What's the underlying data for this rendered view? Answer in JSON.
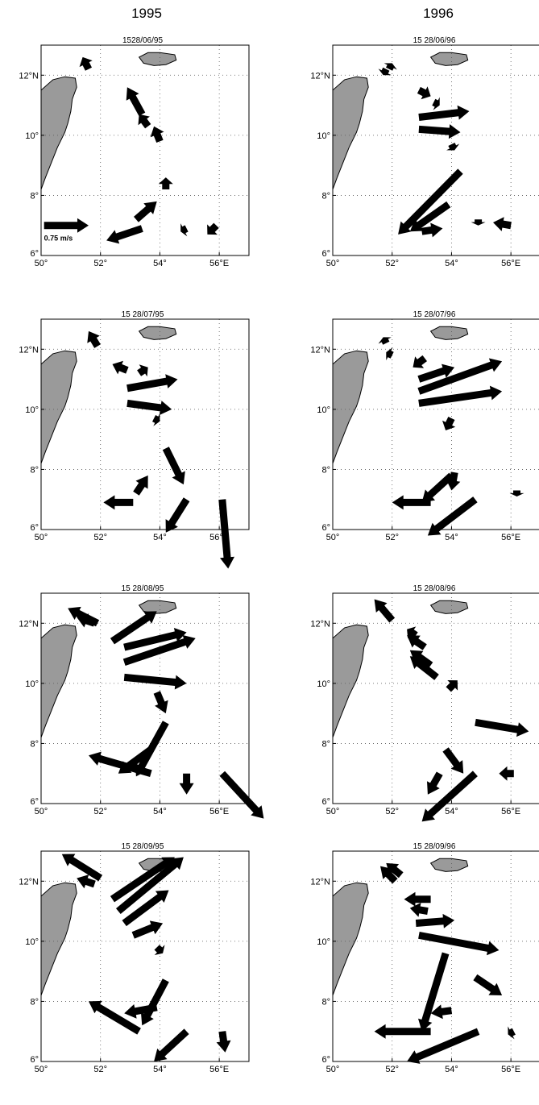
{
  "columns": [
    "1995",
    "1996"
  ],
  "axes": {
    "x_ticks": [
      {
        "v": 50,
        "label": "50°"
      },
      {
        "v": 52,
        "label": "52°"
      },
      {
        "v": 54,
        "label": "54°"
      },
      {
        "v": 56,
        "label": "56°E"
      }
    ],
    "y_ticks": [
      {
        "v": 6,
        "label": "6°"
      },
      {
        "v": 8,
        "label": "8°"
      },
      {
        "v": 10,
        "label": "10°"
      },
      {
        "v": 12,
        "label": "12°N"
      }
    ],
    "xlim": [
      50,
      57
    ],
    "ylim": [
      6,
      13
    ]
  },
  "colors": {
    "land": "#9a9a9a",
    "arrow": "#000000",
    "grid": "#555555"
  },
  "scale_label": "0.75 m/s",
  "chart_data": [
    {
      "type": "quiver",
      "title": "1528/06/95",
      "arrows": [
        [
          51.6,
          12.2,
          51.4,
          12.6
        ],
        [
          53.4,
          10.7,
          52.9,
          11.6
        ],
        [
          53.6,
          10.3,
          53.3,
          10.7
        ],
        [
          54.0,
          9.8,
          53.8,
          10.3
        ],
        [
          54.2,
          8.2,
          54.2,
          8.6
        ],
        [
          53.2,
          7.2,
          53.9,
          7.8
        ],
        [
          53.4,
          6.9,
          52.2,
          6.5
        ],
        [
          54.9,
          6.9,
          54.7,
          6.8
        ],
        [
          55.9,
          7.0,
          55.6,
          6.7
        ],
        [
          50.1,
          7.0,
          51.6,
          7.0
        ]
      ]
    },
    {
      "type": "quiver",
      "title": "15  28/06/96",
      "arrows": [
        [
          51.8,
          12.2,
          51.7,
          12.0
        ],
        [
          51.9,
          12.2,
          52.0,
          12.4
        ],
        [
          52.9,
          11.5,
          53.3,
          11.3
        ],
        [
          53.4,
          11.1,
          53.6,
          11.0
        ],
        [
          52.9,
          10.6,
          54.6,
          10.8
        ],
        [
          52.9,
          10.2,
          54.3,
          10.1
        ],
        [
          54.0,
          9.7,
          54.1,
          9.5
        ],
        [
          54.3,
          8.8,
          52.2,
          6.7
        ],
        [
          53.9,
          7.7,
          52.6,
          6.8
        ],
        [
          53.0,
          6.8,
          53.7,
          6.9
        ],
        [
          54.9,
          7.2,
          54.9,
          7.0
        ],
        [
          56.0,
          7.0,
          55.4,
          7.1
        ]
      ]
    },
    {
      "type": "quiver",
      "title": "15  28/07/95",
      "arrows": [
        [
          51.9,
          12.1,
          51.6,
          12.6
        ],
        [
          52.9,
          11.3,
          52.4,
          11.5
        ],
        [
          53.3,
          11.2,
          53.6,
          11.4
        ],
        [
          52.9,
          10.7,
          54.6,
          11.0
        ],
        [
          52.9,
          10.2,
          54.4,
          10.0
        ],
        [
          53.8,
          9.7,
          54.0,
          9.6
        ],
        [
          54.2,
          8.7,
          54.8,
          7.5
        ],
        [
          53.2,
          7.2,
          53.6,
          7.8
        ],
        [
          53.1,
          6.9,
          52.1,
          6.9
        ],
        [
          54.9,
          7.0,
          54.2,
          5.9
        ],
        [
          56.1,
          7.0,
          56.3,
          4.7
        ]
      ]
    },
    {
      "type": "quiver",
      "title": "15  28/07/96",
      "arrows": [
        [
          51.8,
          12.2,
          51.7,
          12.4
        ],
        [
          52.0,
          11.8,
          51.8,
          11.9
        ],
        [
          53.1,
          11.7,
          52.7,
          11.4
        ],
        [
          52.9,
          11.0,
          54.1,
          11.4
        ],
        [
          52.9,
          10.6,
          55.7,
          11.6
        ],
        [
          52.9,
          10.2,
          55.7,
          10.6
        ],
        [
          54.0,
          9.7,
          53.8,
          9.3
        ],
        [
          54.1,
          7.9,
          54.0,
          7.3
        ],
        [
          54.0,
          7.8,
          53.0,
          6.9
        ],
        [
          53.3,
          6.9,
          52.0,
          6.9
        ],
        [
          54.8,
          7.0,
          53.2,
          5.8
        ],
        [
          56.2,
          7.3,
          56.2,
          7.1
        ]
      ]
    },
    {
      "type": "quiver",
      "title": "15  28/08/95",
      "arrows": [
        [
          51.9,
          12.0,
          50.9,
          12.5
        ],
        [
          51.8,
          12.0,
          51.2,
          12.2
        ],
        [
          52.4,
          11.4,
          53.9,
          12.4
        ],
        [
          52.8,
          11.2,
          54.9,
          11.7
        ],
        [
          52.8,
          10.7,
          55.2,
          11.5
        ],
        [
          52.8,
          10.2,
          54.9,
          10.0
        ],
        [
          53.9,
          9.7,
          54.2,
          9.0
        ],
        [
          54.2,
          8.7,
          53.2,
          6.9
        ],
        [
          53.7,
          7.8,
          52.6,
          7.0
        ],
        [
          53.7,
          7.0,
          51.6,
          7.6
        ],
        [
          54.9,
          7.0,
          54.9,
          6.3
        ],
        [
          56.1,
          7.0,
          57.5,
          5.5
        ]
      ]
    },
    {
      "type": "quiver",
      "title": "15  28/08/96",
      "arrows": [
        [
          52.0,
          12.1,
          51.4,
          12.8
        ],
        [
          52.8,
          11.6,
          52.5,
          11.8
        ],
        [
          53.1,
          11.2,
          52.5,
          11.6
        ],
        [
          53.3,
          10.6,
          52.6,
          11.1
        ],
        [
          53.5,
          10.2,
          52.6,
          10.9
        ],
        [
          53.9,
          9.8,
          54.2,
          10.1
        ],
        [
          54.8,
          8.7,
          56.6,
          8.4
        ],
        [
          53.8,
          7.8,
          54.4,
          7.0
        ],
        [
          54.8,
          7.0,
          53.0,
          5.4
        ],
        [
          53.6,
          7.0,
          53.2,
          6.3
        ],
        [
          56.1,
          7.0,
          55.6,
          7.0
        ]
      ]
    },
    {
      "type": "quiver",
      "title": "15  28/09/95",
      "arrows": [
        [
          52.0,
          12.1,
          50.7,
          12.9
        ],
        [
          51.8,
          11.9,
          51.2,
          12.1
        ],
        [
          52.4,
          11.4,
          54.5,
          12.8
        ],
        [
          52.6,
          11.0,
          54.8,
          12.8
        ],
        [
          52.8,
          10.6,
          54.3,
          11.7
        ],
        [
          53.1,
          10.2,
          54.1,
          10.6
        ],
        [
          53.9,
          9.8,
          54.1,
          9.6
        ],
        [
          54.2,
          8.7,
          53.4,
          7.2
        ],
        [
          53.9,
          7.8,
          52.8,
          7.6
        ],
        [
          53.3,
          7.0,
          51.6,
          8.0
        ],
        [
          54.9,
          7.0,
          53.8,
          6.0
        ],
        [
          56.1,
          7.0,
          56.2,
          6.3
        ]
      ]
    },
    {
      "type": "quiver",
      "title": "15  28/09/96",
      "arrows": [
        [
          52.1,
          12.0,
          51.6,
          12.5
        ],
        [
          52.3,
          12.2,
          51.8,
          12.6
        ],
        [
          53.3,
          11.4,
          52.4,
          11.4
        ],
        [
          53.2,
          11.0,
          52.6,
          11.1
        ],
        [
          52.8,
          10.6,
          54.1,
          10.7
        ],
        [
          52.9,
          10.2,
          55.6,
          9.7
        ],
        [
          53.8,
          9.6,
          53.0,
          7.0
        ],
        [
          54.0,
          7.7,
          53.3,
          7.6
        ],
        [
          53.3,
          7.0,
          51.4,
          7.0
        ],
        [
          54.8,
          8.8,
          55.7,
          8.2
        ],
        [
          54.9,
          7.0,
          52.5,
          6.0
        ],
        [
          56.1,
          7.0,
          55.9,
          6.9
        ]
      ]
    }
  ]
}
